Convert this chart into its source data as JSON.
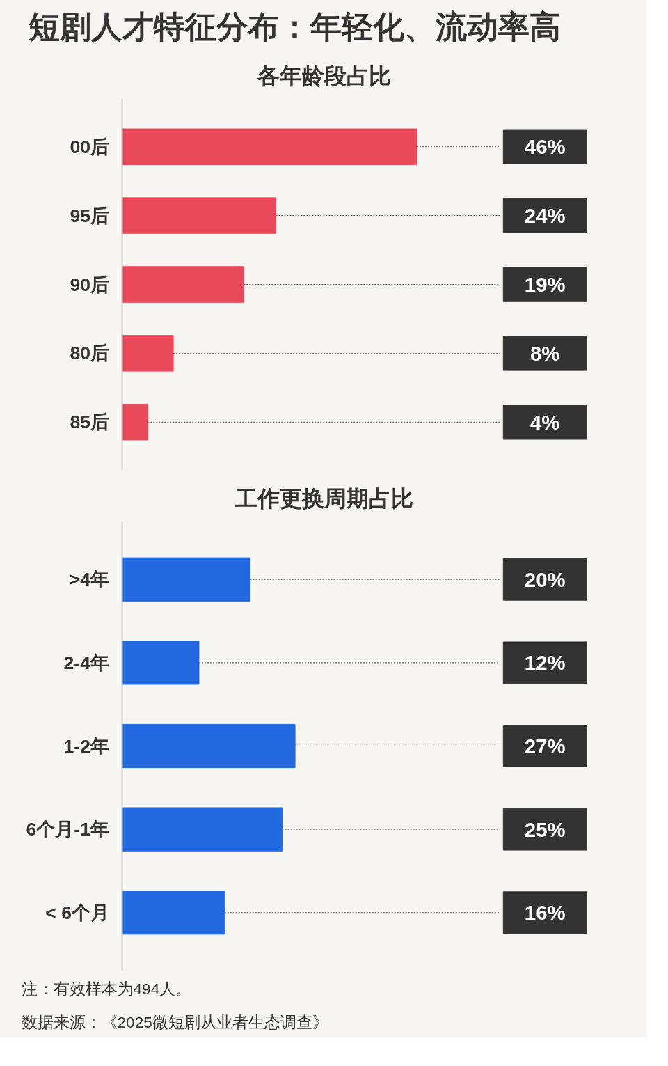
{
  "chart_data": [
    {
      "type": "bar",
      "orientation": "horizontal",
      "title": "短剧人才特征分布：年轻化、流动率高",
      "subtitle": "各年龄段占比",
      "categories": [
        "00后",
        "95后",
        "90后",
        "80后",
        "85后"
      ],
      "values": [
        46,
        24,
        19,
        8,
        4
      ],
      "color": "#e84a5a",
      "value_labels": [
        "46%",
        "24%",
        "19%",
        "8%",
        "4%"
      ]
    },
    {
      "type": "bar",
      "orientation": "horizontal",
      "title": "工作更换周期占比",
      "categories": [
        ">4年",
        "2-4年",
        "1-2年",
        "6个月-1年",
        "< 6个月"
      ],
      "values": [
        20,
        12,
        27,
        25,
        16
      ],
      "color": "#2268e0",
      "value_labels": [
        "20%",
        "12%",
        "27%",
        "25%",
        "16%"
      ],
      "annotations": [
        "注：有效样本为494人。",
        "数据来源：《2025微短剧从业者生态调查》"
      ]
    }
  ]
}
